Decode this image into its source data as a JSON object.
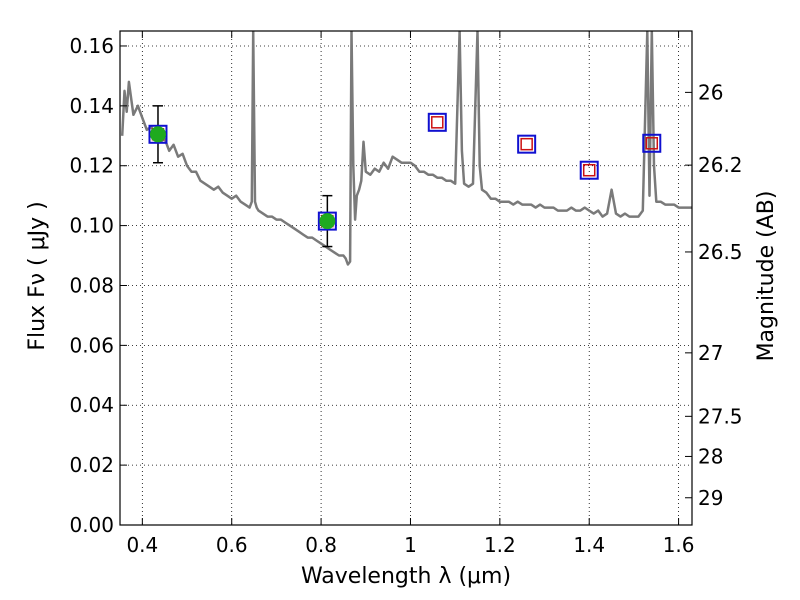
{
  "chart_data": {
    "type": "line",
    "xlabel": "Wavelength  λ (μm)",
    "ylabel": "Flux  Fν  ( μJy )",
    "y2label": "Magnitude (AB)",
    "xlim": [
      0.35,
      1.63
    ],
    "ylim": [
      0.0,
      0.165
    ],
    "grid": true,
    "x_ticks": [
      0.4,
      0.6,
      0.8,
      1.0,
      1.2,
      1.4,
      1.6
    ],
    "x_tick_labels": [
      "0.4",
      "0.6",
      "0.8",
      "1",
      "1.2",
      "1.4",
      "1.6"
    ],
    "y_ticks": [
      0.0,
      0.02,
      0.04,
      0.06,
      0.08,
      0.1,
      0.12,
      0.14,
      0.16
    ],
    "y_tick_labels": [
      "0.00",
      "0.02",
      "0.04",
      "0.06",
      "0.08",
      "0.10",
      "0.12",
      "0.14",
      "0.16"
    ],
    "y2_ticks": [
      {
        "label": "26",
        "flux": 0.1445
      },
      {
        "label": "26.2",
        "flux": 0.1202
      },
      {
        "label": "26.5",
        "flux": 0.0912
      },
      {
        "label": "27",
        "flux": 0.0575
      },
      {
        "label": "27.5",
        "flux": 0.0363
      },
      {
        "label": "28",
        "flux": 0.0229
      },
      {
        "label": "29",
        "flux": 0.0091
      }
    ],
    "colors": {
      "model": "#7a7a7a",
      "detection": "#1faa1f",
      "model_box": "#1010d0",
      "observed_box": "#cc1111",
      "errorbar": "#000000"
    },
    "model_spectrum": {
      "x": [
        0.355,
        0.36,
        0.365,
        0.37,
        0.38,
        0.39,
        0.4,
        0.41,
        0.42,
        0.43,
        0.44,
        0.45,
        0.46,
        0.47,
        0.48,
        0.49,
        0.5,
        0.51,
        0.52,
        0.53,
        0.54,
        0.55,
        0.56,
        0.57,
        0.58,
        0.59,
        0.6,
        0.61,
        0.62,
        0.63,
        0.64,
        0.645,
        0.648,
        0.652,
        0.656,
        0.66,
        0.67,
        0.68,
        0.69,
        0.7,
        0.71,
        0.72,
        0.73,
        0.74,
        0.75,
        0.76,
        0.77,
        0.78,
        0.79,
        0.8,
        0.81,
        0.82,
        0.83,
        0.84,
        0.85,
        0.855,
        0.86,
        0.865,
        0.868,
        0.872,
        0.876,
        0.88,
        0.885,
        0.89,
        0.895,
        0.9,
        0.91,
        0.92,
        0.93,
        0.94,
        0.95,
        0.96,
        0.97,
        0.98,
        0.99,
        1.0,
        1.01,
        1.02,
        1.03,
        1.04,
        1.05,
        1.06,
        1.07,
        1.08,
        1.09,
        1.1,
        1.11,
        1.115,
        1.12,
        1.13,
        1.14,
        1.15,
        1.155,
        1.16,
        1.17,
        1.18,
        1.19,
        1.2,
        1.21,
        1.22,
        1.23,
        1.24,
        1.25,
        1.26,
        1.27,
        1.28,
        1.29,
        1.3,
        1.31,
        1.32,
        1.33,
        1.34,
        1.35,
        1.36,
        1.37,
        1.38,
        1.39,
        1.4,
        1.41,
        1.42,
        1.43,
        1.44,
        1.45,
        1.46,
        1.47,
        1.48,
        1.49,
        1.5,
        1.51,
        1.52,
        1.53,
        1.535,
        1.54,
        1.545,
        1.55,
        1.56,
        1.57,
        1.58,
        1.59,
        1.6,
        1.61,
        1.62,
        1.63
      ],
      "y": [
        0.13,
        0.145,
        0.138,
        0.148,
        0.137,
        0.14,
        0.136,
        0.132,
        0.133,
        0.13,
        0.128,
        0.129,
        0.125,
        0.127,
        0.123,
        0.124,
        0.12,
        0.118,
        0.118,
        0.115,
        0.114,
        0.113,
        0.112,
        0.113,
        0.111,
        0.11,
        0.109,
        0.11,
        0.108,
        0.107,
        0.106,
        0.108,
        0.165,
        0.108,
        0.106,
        0.105,
        0.104,
        0.103,
        0.103,
        0.102,
        0.102,
        0.101,
        0.1,
        0.099,
        0.098,
        0.097,
        0.096,
        0.096,
        0.095,
        0.094,
        0.093,
        0.092,
        0.091,
        0.09,
        0.09,
        0.089,
        0.087,
        0.088,
        0.165,
        0.12,
        0.102,
        0.11,
        0.112,
        0.115,
        0.128,
        0.118,
        0.117,
        0.119,
        0.118,
        0.121,
        0.119,
        0.123,
        0.122,
        0.121,
        0.121,
        0.121,
        0.12,
        0.118,
        0.118,
        0.117,
        0.117,
        0.116,
        0.116,
        0.115,
        0.115,
        0.114,
        0.165,
        0.125,
        0.114,
        0.113,
        0.114,
        0.165,
        0.12,
        0.112,
        0.111,
        0.109,
        0.109,
        0.108,
        0.108,
        0.108,
        0.107,
        0.108,
        0.107,
        0.107,
        0.107,
        0.106,
        0.107,
        0.106,
        0.106,
        0.106,
        0.105,
        0.105,
        0.105,
        0.106,
        0.105,
        0.105,
        0.106,
        0.105,
        0.104,
        0.105,
        0.103,
        0.104,
        0.112,
        0.104,
        0.103,
        0.104,
        0.103,
        0.103,
        0.103,
        0.105,
        0.165,
        0.11,
        0.165,
        0.12,
        0.108,
        0.108,
        0.107,
        0.107,
        0.107,
        0.106,
        0.106,
        0.106,
        0.106
      ]
    },
    "detections": [
      {
        "x": 0.435,
        "y": 0.1305,
        "err": 0.0095
      },
      {
        "x": 0.814,
        "y": 0.1015,
        "err": 0.0085
      }
    ],
    "model_photometry": [
      {
        "x": 0.435,
        "y": 0.1305
      },
      {
        "x": 0.814,
        "y": 0.1015
      },
      {
        "x": 1.06,
        "y": 0.1345
      },
      {
        "x": 1.26,
        "y": 0.1272
      },
      {
        "x": 1.4,
        "y": 0.1185
      },
      {
        "x": 1.54,
        "y": 0.1275
      }
    ],
    "observed_photometry": [
      {
        "x": 0.435,
        "y": 0.1305
      },
      {
        "x": 0.814,
        "y": 0.1015
      },
      {
        "x": 1.06,
        "y": 0.1345
      },
      {
        "x": 1.26,
        "y": 0.1272
      },
      {
        "x": 1.4,
        "y": 0.1185
      },
      {
        "x": 1.54,
        "y": 0.1275
      }
    ]
  }
}
